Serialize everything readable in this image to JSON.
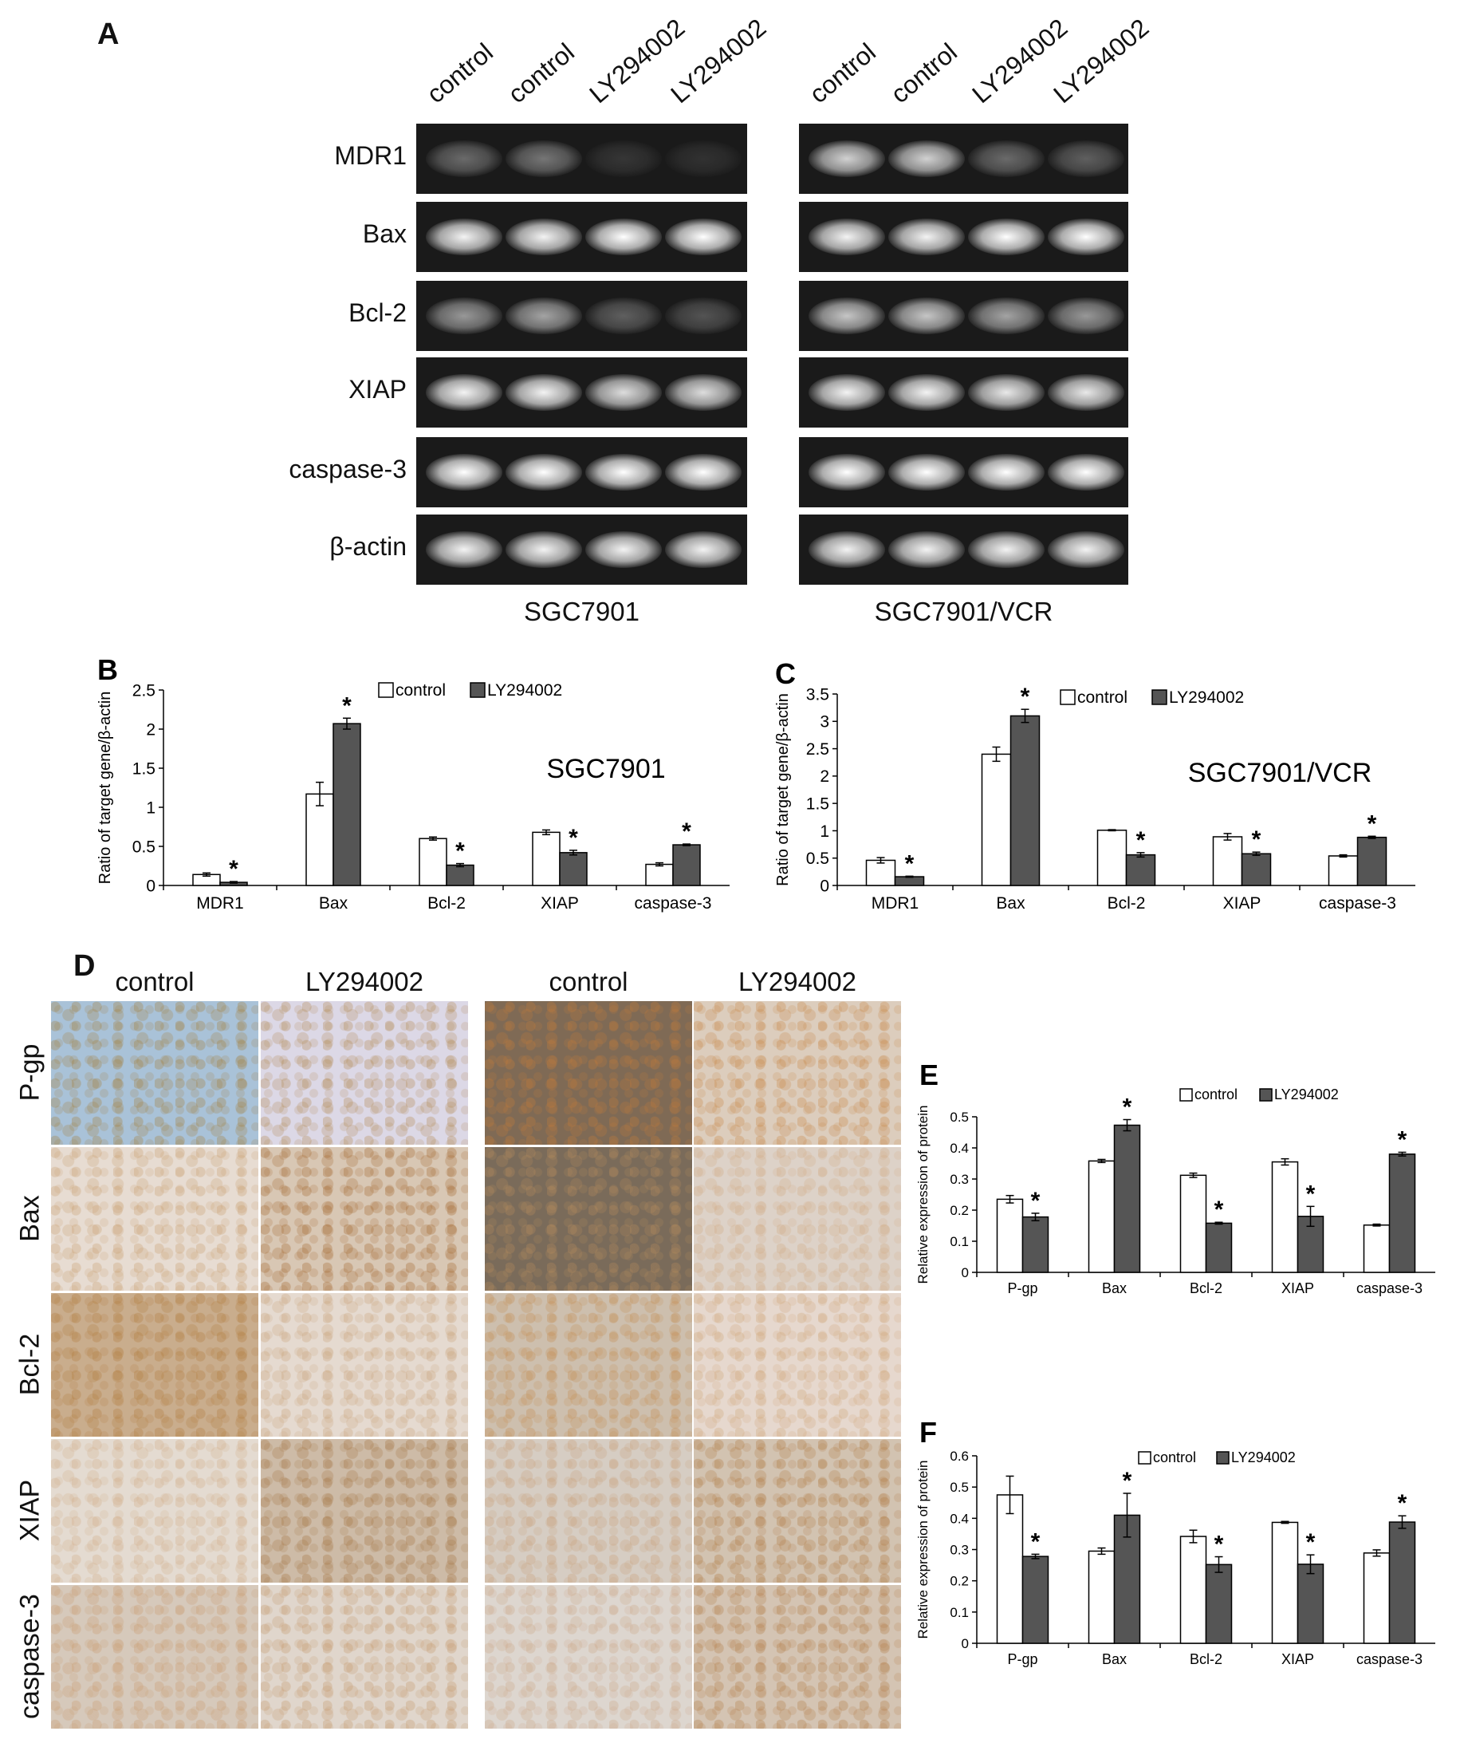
{
  "panels": {
    "A": {
      "letter": "A",
      "lanes": [
        "control",
        "control",
        "LY294002",
        "LY294002"
      ],
      "genes": [
        "MDR1",
        "Bax",
        "Bcl-2",
        "XIAP",
        "caspase-3",
        "β-actin"
      ],
      "cell_lines": [
        "SGC7901",
        "SGC7901/VCR"
      ]
    },
    "D": {
      "letter": "D",
      "columns": [
        "control",
        "LY294002",
        "control",
        "LY294002"
      ],
      "rows": [
        "P-gp",
        "Bax",
        "Bcl-2",
        "XIAP",
        "caspase-3"
      ]
    }
  },
  "chart_data": [
    {
      "id": "B",
      "type": "bar",
      "panel_letter": "B",
      "title": "SGC7901",
      "ylabel": "Ratio of target gene/β-actin",
      "categories": [
        "MDR1",
        "Bax",
        "Bcl-2",
        "XIAP",
        "caspase-3"
      ],
      "ylim": [
        0,
        2.5
      ],
      "yticks": [
        "0",
        "0.5",
        "1",
        "1.5",
        "2",
        "2.5"
      ],
      "series": [
        {
          "name": "control",
          "values": [
            0.14,
            1.17,
            0.6,
            0.68,
            0.27
          ],
          "errors": [
            0.02,
            0.15,
            0.02,
            0.03,
            0.02
          ],
          "color": "#ffffff"
        },
        {
          "name": "LY294002",
          "values": [
            0.04,
            2.07,
            0.26,
            0.42,
            0.52
          ],
          "errors": [
            0.01,
            0.07,
            0.02,
            0.03,
            0.01
          ],
          "color": "#555555"
        }
      ],
      "significance": [
        1,
        1,
        1,
        1,
        1
      ],
      "marker": "*"
    },
    {
      "id": "C",
      "type": "bar",
      "panel_letter": "C",
      "title": "SGC7901/VCR",
      "ylabel": "Ratio of target gene/β-actin",
      "categories": [
        "MDR1",
        "Bax",
        "Bcl-2",
        "XIAP",
        "caspase-3"
      ],
      "ylim": [
        0,
        3.5
      ],
      "yticks": [
        "0",
        "0.5",
        "1",
        "1.5",
        "2",
        "2.5",
        "3",
        "3.5"
      ],
      "series": [
        {
          "name": "control",
          "values": [
            0.46,
            2.4,
            1.01,
            0.89,
            0.54
          ],
          "errors": [
            0.05,
            0.13,
            0.01,
            0.06,
            0.02
          ],
          "color": "#ffffff"
        },
        {
          "name": "LY294002",
          "values": [
            0.16,
            3.1,
            0.56,
            0.58,
            0.88
          ],
          "errors": [
            0.01,
            0.12,
            0.04,
            0.03,
            0.02
          ],
          "color": "#555555"
        }
      ],
      "significance": [
        1,
        1,
        1,
        1,
        1
      ],
      "marker": "*"
    },
    {
      "id": "E",
      "type": "bar",
      "panel_letter": "E",
      "title": "",
      "ylabel": "Relative expression of protein",
      "categories": [
        "P-gp",
        "Bax",
        "Bcl-2",
        "XIAP",
        "caspase-3"
      ],
      "ylim": [
        0,
        0.5
      ],
      "yticks": [
        "0",
        "0.1",
        "0.2",
        "0.3",
        "0.4",
        "0.5"
      ],
      "series": [
        {
          "name": "control",
          "values": [
            0.235,
            0.358,
            0.312,
            0.355,
            0.152
          ],
          "errors": [
            0.012,
            0.005,
            0.007,
            0.01,
            0.003
          ],
          "color": "#ffffff"
        },
        {
          "name": "LY294002",
          "values": [
            0.178,
            0.473,
            0.158,
            0.18,
            0.38
          ],
          "errors": [
            0.012,
            0.018,
            0.003,
            0.032,
            0.006
          ],
          "color": "#555555"
        }
      ],
      "significance": [
        1,
        1,
        1,
        1,
        1
      ],
      "marker": "*"
    },
    {
      "id": "F",
      "type": "bar",
      "panel_letter": "F",
      "title": "",
      "ylabel": "Relative expression of protein",
      "categories": [
        "P-gp",
        "Bax",
        "Bcl-2",
        "XIAP",
        "caspase-3"
      ],
      "ylim": [
        0,
        0.6
      ],
      "yticks": [
        "0",
        "0.1",
        "0.2",
        "0.3",
        "0.4",
        "0.5",
        "0.6"
      ],
      "series": [
        {
          "name": "control",
          "values": [
            0.475,
            0.295,
            0.342,
            0.387,
            0.289
          ],
          "errors": [
            0.06,
            0.01,
            0.02,
            0.003,
            0.01
          ],
          "color": "#ffffff"
        },
        {
          "name": "LY294002",
          "values": [
            0.278,
            0.41,
            0.252,
            0.253,
            0.388
          ],
          "errors": [
            0.007,
            0.07,
            0.025,
            0.03,
            0.02
          ],
          "color": "#555555"
        }
      ],
      "significance": [
        1,
        1,
        1,
        1,
        1
      ],
      "marker": "*"
    }
  ]
}
